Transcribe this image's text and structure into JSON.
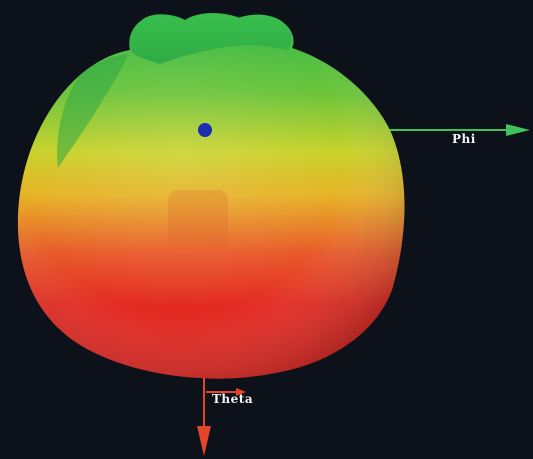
{
  "labels": {
    "phi": "Phi",
    "theta": "Theta"
  },
  "colors": {
    "background": "#0d1119",
    "pattern_top": "#2fb84a",
    "pattern_mid": "#d8d41f",
    "pattern_bottom": "#e42620",
    "phi_axis": "#3ec25a",
    "theta_axis": "#e5452b",
    "marker": "#1a2fb0"
  },
  "icons": {
    "phi_arrow": "arrow-right-icon",
    "theta_arrow": "arrow-down-icon",
    "marker": "dot-icon"
  }
}
